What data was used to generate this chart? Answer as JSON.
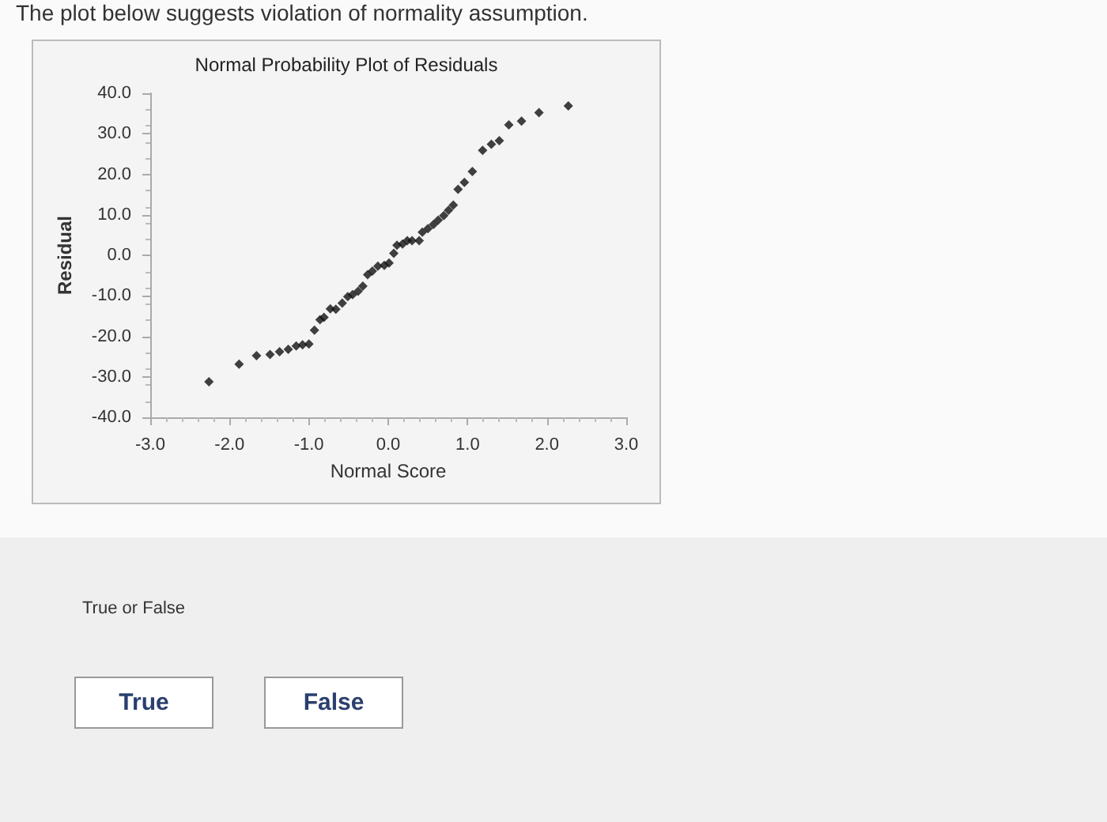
{
  "chart_data": {
    "type": "scatter",
    "title": "Normal Probability Plot of Residuals",
    "xlabel": "Normal Score",
    "ylabel": "Residual",
    "x": [
      -2.26,
      -1.88,
      -1.66,
      -1.49,
      -1.37,
      -1.26,
      -1.16,
      -1.08,
      -1.0,
      -0.93,
      -0.86,
      -0.81,
      -0.73,
      -0.66,
      -0.58,
      -0.51,
      -0.45,
      -0.38,
      -0.32,
      -0.26,
      -0.2,
      -0.13,
      -0.05,
      0.01,
      0.07,
      0.11,
      0.18,
      0.24,
      0.3,
      0.39,
      0.43,
      0.5,
      0.57,
      0.63,
      0.7,
      0.76,
      0.82,
      0.88,
      0.96,
      1.06,
      1.19,
      1.3,
      1.4,
      1.52,
      1.68,
      1.9,
      2.27
    ],
    "series": [
      {
        "color": "#111111",
        "values": [
          -31.2,
          -26.9,
          -24.8,
          -24.5,
          -23.8,
          -23.2,
          -22.4,
          -22.1,
          -21.9,
          -18.5,
          -15.9,
          -15.3,
          -13.2,
          -13.3,
          -11.8,
          -10.2,
          -9.7,
          -8.9,
          -7.6,
          -4.8,
          -3.9,
          -2.7,
          -2.5,
          -1.9,
          0.5,
          2.5,
          2.8,
          3.6,
          3.6,
          3.6,
          5.7,
          6.6,
          7.6,
          8.7,
          9.8,
          11.1,
          12.4,
          16.3,
          18.0,
          20.7,
          25.9,
          27.4,
          28.3,
          32.2,
          33.1,
          35.2,
          36.9
        ]
      }
    ],
    "xlim": [
      -3,
      3
    ],
    "ylim": [
      -40,
      40
    ],
    "xticks": [
      {
        "value": -3,
        "label": "-3.0"
      },
      {
        "value": -2,
        "label": "-2.0"
      },
      {
        "value": -1,
        "label": "-1.0"
      },
      {
        "value": 0,
        "label": "0.0"
      },
      {
        "value": 1,
        "label": "1.0"
      },
      {
        "value": 2,
        "label": "2.0"
      },
      {
        "value": 3,
        "label": "3.0"
      }
    ],
    "yticks": [
      {
        "value": -40,
        "label": "-40.0"
      },
      {
        "value": -30,
        "label": "-30.0"
      },
      {
        "value": -20,
        "label": "-20.0"
      },
      {
        "value": -10,
        "label": "-10.0"
      },
      {
        "value": 0,
        "label": "0.0"
      },
      {
        "value": 10,
        "label": "10.0"
      },
      {
        "value": 20,
        "label": "20.0"
      },
      {
        "value": 30,
        "label": "30.0"
      },
      {
        "value": 40,
        "label": "40.0"
      }
    ],
    "grid": false,
    "marker": "diamond",
    "annotations": [
      "The plot below suggests violation of normality assumption.",
      "True or False",
      "True",
      "False"
    ]
  }
}
